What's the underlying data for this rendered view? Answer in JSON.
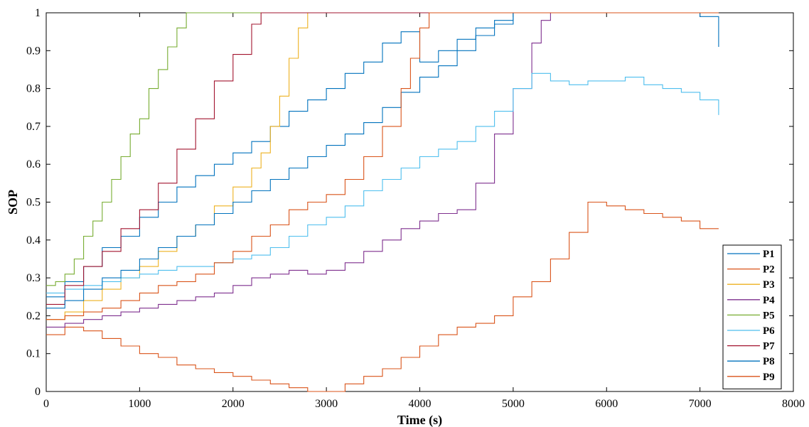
{
  "chart_data": {
    "type": "line",
    "title": "",
    "xlabel": "Time (s)",
    "ylabel": "SOP",
    "xlim": [
      0,
      8000
    ],
    "ylim": [
      0,
      1
    ],
    "x_ticks": [
      0,
      1000,
      2000,
      3000,
      4000,
      5000,
      6000,
      7000,
      8000
    ],
    "y_ticks": [
      0,
      0.1,
      0.2,
      0.3,
      0.4,
      0.5,
      0.6,
      0.7,
      0.8,
      0.9,
      1
    ],
    "x_tick_labels": [
      "0",
      "1000",
      "2000",
      "3000",
      "4000",
      "5000",
      "6000",
      "7000",
      "8000"
    ],
    "y_tick_labels": [
      "0",
      "0.1",
      "0.2",
      "0.3",
      "0.4",
      "0.5",
      "0.6",
      "0.7",
      "0.8",
      "0.9",
      "1"
    ],
    "grid": false,
    "legend_position": "bottom-right",
    "series": [
      {
        "name": "P1",
        "color": "#0072BD",
        "x": [
          0,
          200,
          400,
          600,
          800,
          1000,
          1200,
          1400,
          1600,
          1800,
          2000,
          2200,
          2400,
          2600,
          2800,
          3000,
          3200,
          3400,
          3600,
          3800,
          4000,
          4200,
          4400,
          4600,
          4800,
          5000,
          5200,
          5400,
          5600,
          5800,
          6000,
          6200,
          6400,
          6600,
          6800,
          7000,
          7200
        ],
        "y": [
          0.25,
          0.29,
          0.33,
          0.38,
          0.41,
          0.46,
          0.5,
          0.54,
          0.57,
          0.6,
          0.63,
          0.66,
          0.7,
          0.74,
          0.77,
          0.8,
          0.84,
          0.87,
          0.92,
          0.95,
          0.87,
          0.9,
          0.93,
          0.96,
          0.98,
          1.0,
          1.0,
          1.0,
          1.0,
          1.0,
          1.0,
          1.0,
          1.0,
          1.0,
          1.0,
          0.99,
          0.91
        ]
      },
      {
        "name": "P2",
        "color": "#D95319",
        "x": [
          0,
          200,
          400,
          600,
          800,
          1000,
          1200,
          1400,
          1600,
          1800,
          2000,
          2200,
          2400,
          2600,
          2800,
          3000,
          3200,
          3400,
          3600,
          3800,
          4000,
          4200,
          4400,
          4600,
          4800,
          5000,
          5200,
          5400,
          5600,
          5800,
          6000,
          6200,
          6400,
          6600,
          6800,
          7000,
          7200
        ],
        "y": [
          0.15,
          0.17,
          0.16,
          0.14,
          0.12,
          0.1,
          0.09,
          0.07,
          0.06,
          0.05,
          0.04,
          0.03,
          0.02,
          0.01,
          0.0,
          0.0,
          0.02,
          0.04,
          0.06,
          0.09,
          0.12,
          0.15,
          0.17,
          0.18,
          0.2,
          0.25,
          0.29,
          0.35,
          0.42,
          0.5,
          0.49,
          0.48,
          0.47,
          0.46,
          0.45,
          0.43,
          0.43
        ]
      },
      {
        "name": "P3",
        "color": "#EDB120",
        "x": [
          0,
          200,
          400,
          600,
          800,
          1000,
          1200,
          1400,
          1600,
          1800,
          2000,
          2200,
          2300,
          2400,
          2500,
          2600,
          2700,
          2800,
          3000,
          4000,
          5000,
          6000,
          7200
        ],
        "y": [
          0.19,
          0.21,
          0.24,
          0.27,
          0.3,
          0.33,
          0.37,
          0.41,
          0.44,
          0.49,
          0.54,
          0.59,
          0.63,
          0.7,
          0.78,
          0.88,
          0.96,
          1.0,
          1.0,
          1.0,
          1.0,
          1.0,
          1.0
        ]
      },
      {
        "name": "P4",
        "color": "#7E2F8E",
        "x": [
          0,
          200,
          400,
          600,
          800,
          1000,
          1200,
          1400,
          1600,
          1800,
          2000,
          2200,
          2400,
          2600,
          2800,
          3000,
          3200,
          3400,
          3600,
          3800,
          4000,
          4200,
          4400,
          4600,
          4800,
          5000,
          5200,
          5300,
          5400,
          6000,
          7200
        ],
        "y": [
          0.17,
          0.18,
          0.19,
          0.2,
          0.21,
          0.22,
          0.23,
          0.24,
          0.25,
          0.26,
          0.28,
          0.3,
          0.31,
          0.32,
          0.31,
          0.32,
          0.34,
          0.37,
          0.4,
          0.43,
          0.45,
          0.47,
          0.48,
          0.55,
          0.68,
          0.8,
          0.92,
          0.98,
          1.0,
          1.0,
          1.0
        ]
      },
      {
        "name": "P5",
        "color": "#77AC30",
        "x": [
          0,
          100,
          200,
          300,
          400,
          500,
          600,
          700,
          800,
          900,
          1000,
          1100,
          1200,
          1300,
          1400,
          1500,
          2000,
          3000,
          4000,
          5000,
          6000,
          7200
        ],
        "y": [
          0.28,
          0.29,
          0.31,
          0.35,
          0.41,
          0.45,
          0.5,
          0.56,
          0.62,
          0.68,
          0.72,
          0.8,
          0.85,
          0.91,
          0.96,
          1.0,
          1.0,
          1.0,
          1.0,
          1.0,
          1.0,
          1.0
        ]
      },
      {
        "name": "P6",
        "color": "#4DBEEE",
        "x": [
          0,
          200,
          400,
          600,
          800,
          1000,
          1200,
          1400,
          1600,
          1800,
          2000,
          2200,
          2400,
          2600,
          2800,
          3000,
          3200,
          3400,
          3600,
          3800,
          4000,
          4200,
          4400,
          4600,
          4800,
          5000,
          5200,
          5400,
          5600,
          5800,
          6000,
          6200,
          6400,
          6600,
          6800,
          7000,
          7200
        ],
        "y": [
          0.26,
          0.27,
          0.28,
          0.29,
          0.3,
          0.31,
          0.32,
          0.33,
          0.33,
          0.34,
          0.35,
          0.36,
          0.38,
          0.41,
          0.44,
          0.46,
          0.49,
          0.53,
          0.56,
          0.59,
          0.62,
          0.64,
          0.66,
          0.7,
          0.74,
          0.8,
          0.84,
          0.82,
          0.81,
          0.82,
          0.82,
          0.83,
          0.81,
          0.8,
          0.79,
          0.77,
          0.73
        ]
      },
      {
        "name": "P7",
        "color": "#A2142F",
        "x": [
          0,
          200,
          400,
          600,
          800,
          1000,
          1200,
          1400,
          1600,
          1800,
          2000,
          2200,
          2300,
          3000,
          4000,
          5000,
          6000,
          7200
        ],
        "y": [
          0.23,
          0.28,
          0.33,
          0.37,
          0.43,
          0.48,
          0.55,
          0.64,
          0.72,
          0.82,
          0.89,
          0.97,
          1.0,
          1.0,
          1.0,
          1.0,
          1.0,
          1.0
        ]
      },
      {
        "name": "P8",
        "color": "#0072BD",
        "x": [
          0,
          200,
          400,
          600,
          800,
          1000,
          1200,
          1400,
          1600,
          1800,
          2000,
          2200,
          2400,
          2600,
          2800,
          3000,
          3200,
          3400,
          3600,
          3800,
          4000,
          4200,
          4400,
          4600,
          4800,
          5000,
          5400,
          6000,
          7200
        ],
        "y": [
          0.22,
          0.24,
          0.27,
          0.3,
          0.32,
          0.35,
          0.38,
          0.41,
          0.44,
          0.47,
          0.5,
          0.53,
          0.56,
          0.59,
          0.62,
          0.65,
          0.68,
          0.71,
          0.75,
          0.79,
          0.83,
          0.86,
          0.9,
          0.94,
          0.97,
          1.0,
          1.0,
          1.0,
          1.0
        ]
      },
      {
        "name": "P9",
        "color": "#D95319",
        "x": [
          0,
          200,
          400,
          600,
          800,
          1000,
          1200,
          1400,
          1600,
          1800,
          2000,
          2200,
          2400,
          2600,
          2800,
          3000,
          3200,
          3400,
          3600,
          3800,
          3900,
          4000,
          4100,
          5000,
          6000,
          7200
        ],
        "y": [
          0.19,
          0.2,
          0.21,
          0.22,
          0.24,
          0.26,
          0.28,
          0.29,
          0.31,
          0.34,
          0.37,
          0.41,
          0.44,
          0.48,
          0.5,
          0.52,
          0.56,
          0.62,
          0.7,
          0.8,
          0.88,
          0.96,
          1.0,
          1.0,
          1.0,
          1.0
        ]
      }
    ]
  }
}
